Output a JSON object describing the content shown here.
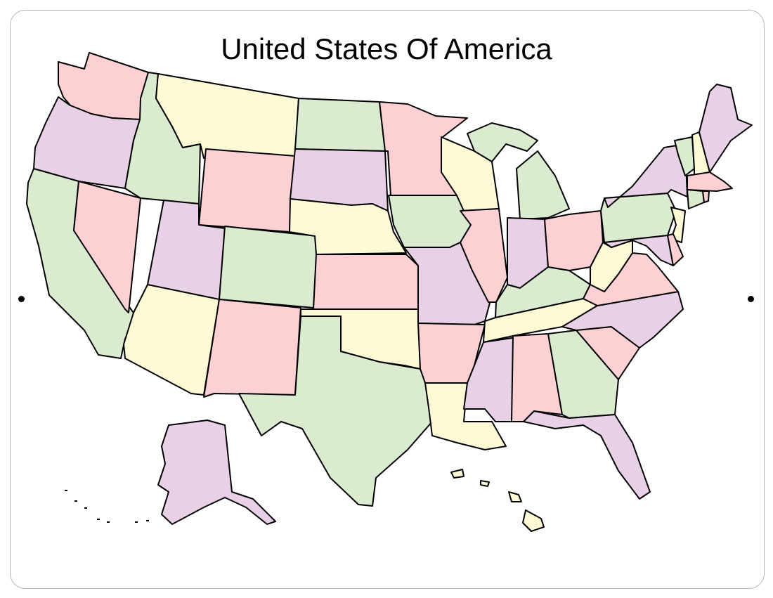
{
  "title": "United States Of America",
  "palette": {
    "pink": "#fdd0d3",
    "purple": "#e8d0e6",
    "green": "#dbebcf",
    "yellow": "#fefad6"
  },
  "states": {
    "WA": "pink",
    "OR": "purple",
    "CA": "green",
    "NV": "pink",
    "ID": "green",
    "MT": "yellow",
    "WY": "pink",
    "UT": "purple",
    "AZ": "yellow",
    "CO": "green",
    "NM": "pink",
    "ND": "green",
    "SD": "purple",
    "NE": "yellow",
    "KS": "pink",
    "OK": "yellow",
    "TX": "green",
    "MN": "pink",
    "IA": "green",
    "MO": "purple",
    "AR": "pink",
    "LA": "yellow",
    "WI": "yellow",
    "IL": "pink",
    "MI": "green",
    "IN": "purple",
    "OH": "pink",
    "KY": "green",
    "TN": "yellow",
    "MS": "purple",
    "AL": "pink",
    "GA": "green",
    "FL": "purple",
    "SC": "pink",
    "NC": "purple",
    "VA": "pink",
    "WV": "yellow",
    "PA": "green",
    "NY": "purple",
    "NJ": "yellow",
    "MD": "purple",
    "DE": "pink",
    "VT": "green",
    "NH": "yellow",
    "ME": "purple",
    "MA": "pink",
    "CT": "green",
    "RI": "pink",
    "AK": "purple",
    "HI": "yellow"
  }
}
